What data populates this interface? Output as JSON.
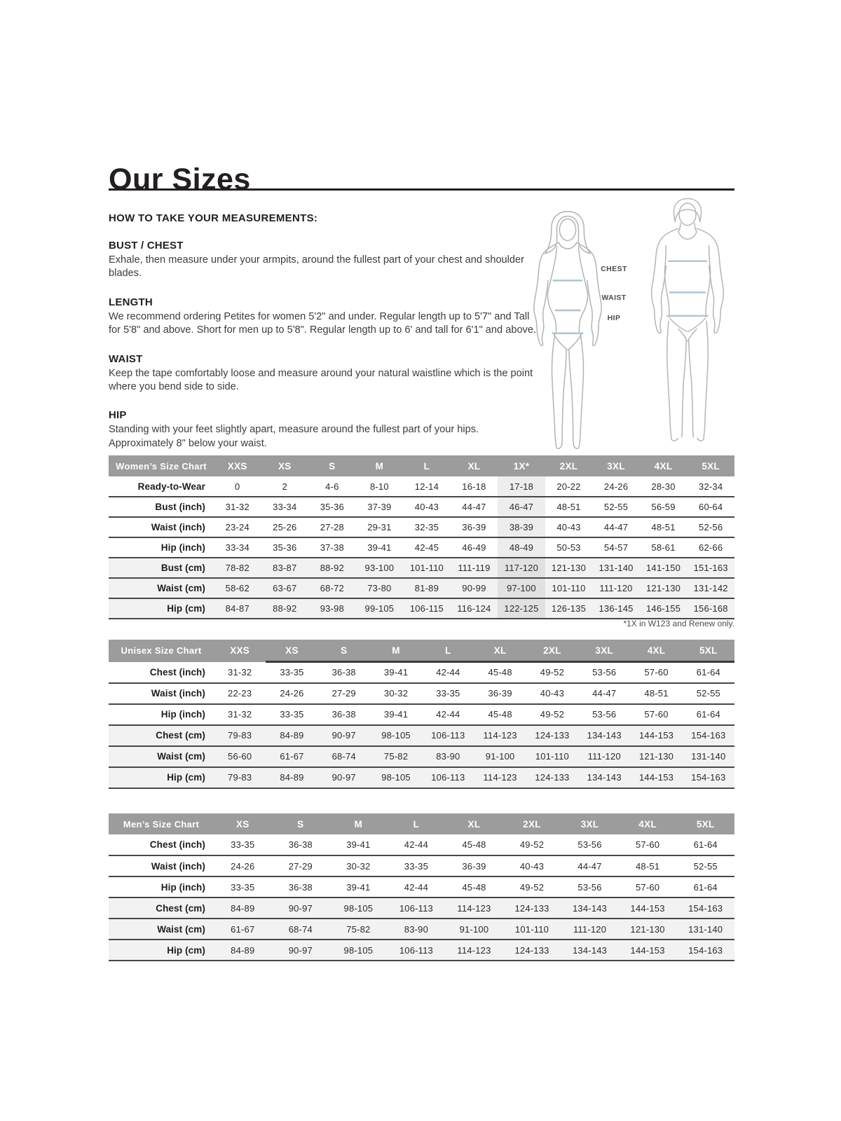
{
  "page": {
    "title": "Our Sizes"
  },
  "measurements": {
    "heading": "HOW TO TAKE YOUR MEASUREMENTS:",
    "sections": [
      {
        "title": "BUST / CHEST",
        "body": "Exhale, then measure under your armpits, around the fullest part of your chest and shoulder blades."
      },
      {
        "title": "LENGTH",
        "body": "We recommend ordering Petites for women 5'2\" and under. Regular length up to 5'7\" and Tall for 5'8\" and above. Short for men up to 5'8\". Regular length up to 6' and tall for 6'1\" and above."
      },
      {
        "title": "WAIST",
        "body": "Keep the tape comfortably loose and measure around your natural waistline which is the point where you bend side to side."
      },
      {
        "title": "HIP",
        "body": "Standing with your feet slightly apart, measure around the fullest part of your hips. Approximately 8\" below your waist."
      }
    ],
    "figure_labels": [
      "CHEST",
      "WAIST",
      "HIP"
    ]
  },
  "colors": {
    "table_header_bg": "#9c9c9c",
    "cm_row_shade": "#f2f2f2",
    "highlight_column_shade": "#ededed",
    "measure_line_blue": "#a9c6d6",
    "figure_outline_gray": "#b5b5b5"
  },
  "tables": [
    {
      "name": "table-womens-size-chart",
      "title": "Women’s Size Chart",
      "columns": [
        "XXS",
        "XS",
        "S",
        "M",
        "L",
        "XL",
        "1X*",
        "2XL",
        "3XL",
        "4XL",
        "5XL"
      ],
      "highlight_col": 6,
      "header_rule_from": null,
      "footnote": "*1X in W123 and Renew only.",
      "rows": [
        {
          "label": "Ready-to-Wear",
          "shaded": false,
          "values": [
            "0",
            "2",
            "4-6",
            "8-10",
            "12-14",
            "16-18",
            "17-18",
            "20-22",
            "24-26",
            "28-30",
            "32-34"
          ]
        },
        {
          "label": "Bust (inch)",
          "shaded": false,
          "values": [
            "31-32",
            "33-34",
            "35-36",
            "37-39",
            "40-43",
            "44-47",
            "46-47",
            "48-51",
            "52-55",
            "56-59",
            "60-64"
          ]
        },
        {
          "label": "Waist (inch)",
          "shaded": false,
          "values": [
            "23-24",
            "25-26",
            "27-28",
            "29-31",
            "32-35",
            "36-39",
            "38-39",
            "40-43",
            "44-47",
            "48-51",
            "52-56"
          ]
        },
        {
          "label": "Hip (inch)",
          "shaded": false,
          "values": [
            "33-34",
            "35-36",
            "37-38",
            "39-41",
            "42-45",
            "46-49",
            "48-49",
            "50-53",
            "54-57",
            "58-61",
            "62-66"
          ]
        },
        {
          "label": "Bust (cm)",
          "shaded": true,
          "values": [
            "78-82",
            "83-87",
            "88-92",
            "93-100",
            "101-110",
            "111-119",
            "117-120",
            "121-130",
            "131-140",
            "141-150",
            "151-163"
          ]
        },
        {
          "label": "Waist (cm)",
          "shaded": true,
          "values": [
            "58-62",
            "63-67",
            "68-72",
            "73-80",
            "81-89",
            "90-99",
            "97-100",
            "101-110",
            "111-120",
            "121-130",
            "131-142"
          ]
        },
        {
          "label": "Hip (cm)",
          "shaded": true,
          "values": [
            "84-87",
            "88-92",
            "93-98",
            "99-105",
            "106-115",
            "116-124",
            "122-125",
            "126-135",
            "136-145",
            "146-155",
            "156-168"
          ]
        }
      ]
    },
    {
      "name": "table-unisex-size-chart",
      "title": "Unisex Size Chart",
      "columns": [
        "XXS",
        "XS",
        "S",
        "M",
        "L",
        "XL",
        "2XL",
        "3XL",
        "4XL",
        "5XL"
      ],
      "highlight_col": null,
      "header_rule_from": 1,
      "footnote": null,
      "rows": [
        {
          "label": "Chest (inch)",
          "shaded": false,
          "values": [
            "31-32",
            "33-35",
            "36-38",
            "39-41",
            "42-44",
            "45-48",
            "49-52",
            "53-56",
            "57-60",
            "61-64"
          ]
        },
        {
          "label": "Waist (inch)",
          "shaded": false,
          "values": [
            "22-23",
            "24-26",
            "27-29",
            "30-32",
            "33-35",
            "36-39",
            "40-43",
            "44-47",
            "48-51",
            "52-55"
          ]
        },
        {
          "label": "Hip (inch)",
          "shaded": false,
          "values": [
            "31-32",
            "33-35",
            "36-38",
            "39-41",
            "42-44",
            "45-48",
            "49-52",
            "53-56",
            "57-60",
            "61-64"
          ]
        },
        {
          "label": "Chest (cm)",
          "shaded": true,
          "values": [
            "79-83",
            "84-89",
            "90-97",
            "98-105",
            "106-113",
            "114-123",
            "124-133",
            "134-143",
            "144-153",
            "154-163"
          ]
        },
        {
          "label": "Waist (cm)",
          "shaded": true,
          "values": [
            "56-60",
            "61-67",
            "68-74",
            "75-82",
            "83-90",
            "91-100",
            "101-110",
            "111-120",
            "121-130",
            "131-140"
          ]
        },
        {
          "label": "Hip (cm)",
          "shaded": true,
          "values": [
            "79-83",
            "84-89",
            "90-97",
            "98-105",
            "106-113",
            "114-123",
            "124-133",
            "134-143",
            "144-153",
            "154-163"
          ]
        }
      ]
    },
    {
      "name": "table-mens-size-chart",
      "title": "Men’s Size Chart",
      "columns": [
        "XS",
        "S",
        "M",
        "L",
        "XL",
        "2XL",
        "3XL",
        "4XL",
        "5XL"
      ],
      "highlight_col": null,
      "header_rule_from": null,
      "footnote": null,
      "rows": [
        {
          "label": "Chest (inch)",
          "shaded": false,
          "values": [
            "33-35",
            "36-38",
            "39-41",
            "42-44",
            "45-48",
            "49-52",
            "53-56",
            "57-60",
            "61-64"
          ]
        },
        {
          "label": "Waist (inch)",
          "shaded": false,
          "values": [
            "24-26",
            "27-29",
            "30-32",
            "33-35",
            "36-39",
            "40-43",
            "44-47",
            "48-51",
            "52-55"
          ]
        },
        {
          "label": "Hip (inch)",
          "shaded": false,
          "values": [
            "33-35",
            "36-38",
            "39-41",
            "42-44",
            "45-48",
            "49-52",
            "53-56",
            "57-60",
            "61-64"
          ]
        },
        {
          "label": "Chest (cm)",
          "shaded": true,
          "values": [
            "84-89",
            "90-97",
            "98-105",
            "106-113",
            "114-123",
            "124-133",
            "134-143",
            "144-153",
            "154-163"
          ]
        },
        {
          "label": "Waist (cm)",
          "shaded": true,
          "values": [
            "61-67",
            "68-74",
            "75-82",
            "83-90",
            "91-100",
            "101-110",
            "111-120",
            "121-130",
            "131-140"
          ]
        },
        {
          "label": "Hip (cm)",
          "shaded": true,
          "values": [
            "84-89",
            "90-97",
            "98-105",
            "106-113",
            "114-123",
            "124-133",
            "134-143",
            "144-153",
            "154-163"
          ]
        }
      ]
    }
  ]
}
